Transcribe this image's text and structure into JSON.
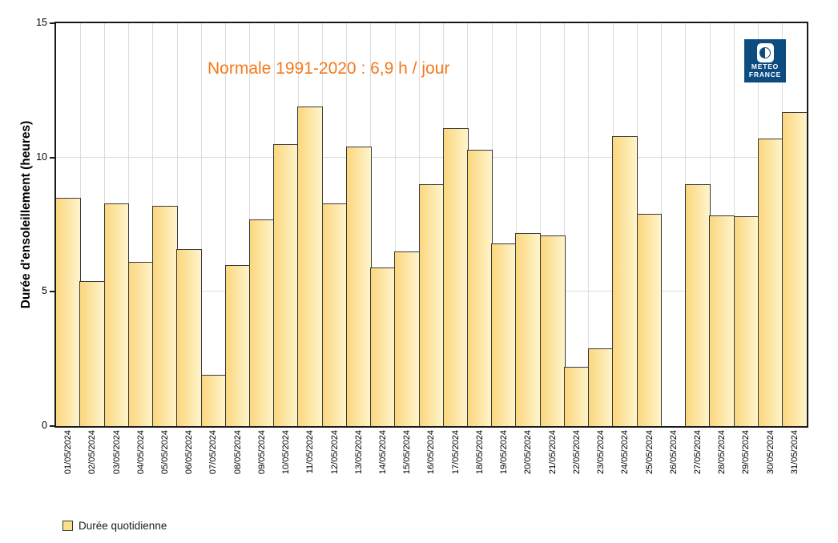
{
  "chart_data": {
    "type": "bar",
    "annotation": "Normale 1991-2020 : 6,9 h / jour",
    "ylabel": "Durée d'ensoleillement (heures)",
    "categories": [
      "01/05/2024",
      "02/05/2024",
      "03/05/2024",
      "04/05/2024",
      "05/05/2024",
      "06/05/2024",
      "07/05/2024",
      "08/05/2024",
      "09/05/2024",
      "10/05/2024",
      "11/05/2024",
      "12/05/2024",
      "13/05/2024",
      "14/05/2024",
      "15/05/2024",
      "16/05/2024",
      "17/05/2024",
      "18/05/2024",
      "19/05/2024",
      "20/05/2024",
      "21/05/2024",
      "22/05/2024",
      "23/05/2024",
      "24/05/2024",
      "25/05/2024",
      "26/05/2024",
      "27/05/2024",
      "28/05/2024",
      "29/05/2024",
      "30/05/2024",
      "31/05/2024"
    ],
    "values": [
      8.5,
      5.4,
      8.3,
      6.1,
      8.2,
      6.6,
      1.9,
      6.0,
      7.7,
      10.5,
      11.9,
      8.3,
      10.4,
      5.9,
      6.5,
      9.0,
      11.1,
      10.3,
      6.8,
      7.2,
      7.1,
      2.2,
      2.9,
      10.8,
      7.9,
      0,
      9.0,
      7.85,
      7.8,
      10.7,
      11.7
    ],
    "ylim": [
      0,
      15
    ],
    "yticks": [
      0,
      5,
      10,
      15
    ],
    "grid": {
      "horizontal_at": [
        5,
        10
      ],
      "vertical": "one per day boundary"
    },
    "legend": {
      "label": "Durée quotidienne",
      "position": "bottom-left"
    },
    "colors": {
      "bar_fill_left": "#fbd77e",
      "bar_fill_right": "#fef4cc",
      "bar_border": "#3a3a3a",
      "annotation": "#f5791d",
      "grid": "#dcdcdc",
      "axis": "#1a1a1a"
    }
  },
  "logo": {
    "line1": "METEO",
    "line2": "FRANCE",
    "bg": "#0d4c80"
  }
}
